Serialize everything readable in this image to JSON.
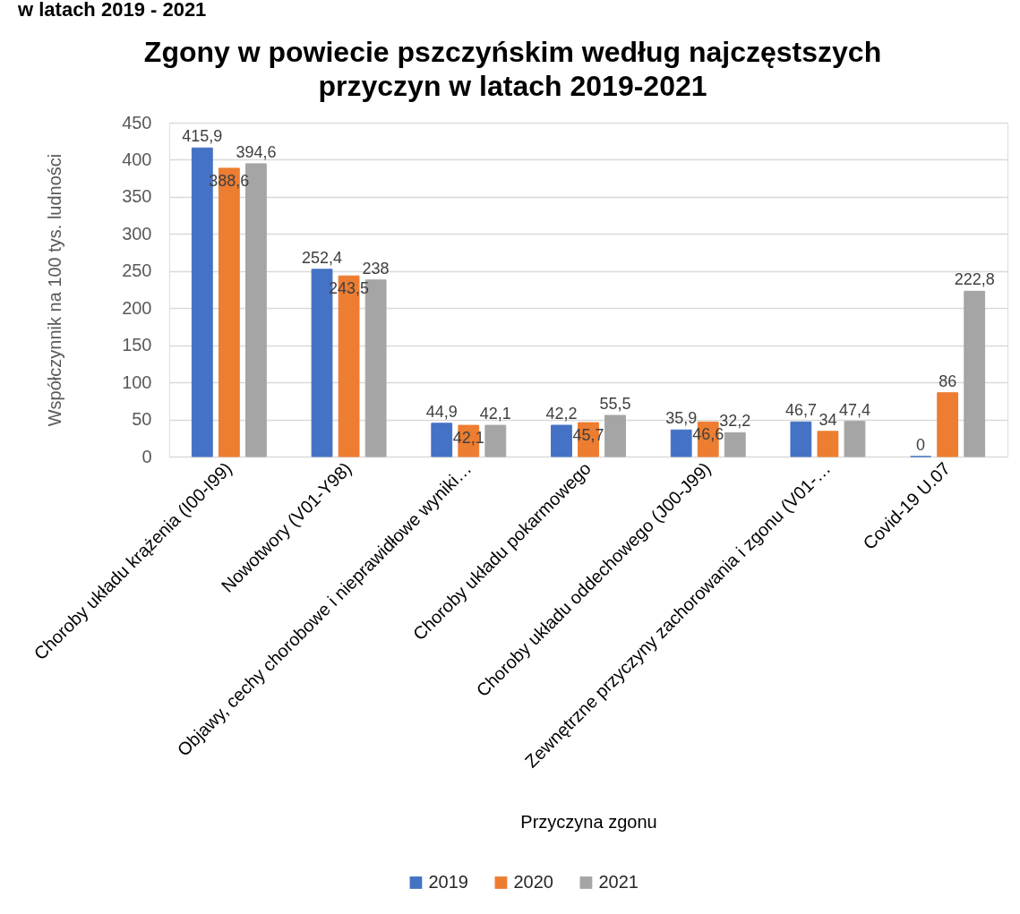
{
  "chart_data": {
    "type": "bar",
    "title": "Zgony w powiecie pszczyńskim według najczęstszych przyczyn w latach 2019-2021",
    "xlabel": "Przyczyna zgonu",
    "ylabel": "Współczynnik na 100 tys. ludności",
    "annotations": [
      "w latach 2019 - 2021"
    ],
    "categories": [
      "Choroby układu krążenia (I00-I99)",
      "Nowotwory (V01-Y98)",
      "Objawy, cechy chorobowe i nieprawidłowe wyniki…",
      "Choroby układu pokarmowego",
      "Choroby układu oddechowego (J00-J99)",
      "Zewnętrzne przyczyny zachorowania i zgonu (V01-…",
      "Covid-19 U.07"
    ],
    "series": [
      {
        "name": "2019",
        "color": "#4472c4",
        "values": [
          415.9,
          252.4,
          44.9,
          42.2,
          35.9,
          46.7,
          0
        ],
        "value_labels": [
          "415,9",
          "252,4",
          "44,9",
          "42,2",
          "35,9",
          "46,7",
          "0"
        ]
      },
      {
        "name": "2020",
        "color": "#ed7d31",
        "values": [
          388.6,
          243.5,
          42.1,
          45.7,
          46.6,
          34,
          86
        ],
        "value_labels": [
          "388,6",
          "243,5",
          "42,1",
          "45,7",
          "46,6",
          "34",
          "86"
        ]
      },
      {
        "name": "2021",
        "color": "#a5a5a5",
        "values": [
          394.6,
          238,
          42.1,
          55.5,
          32.2,
          47.4,
          222.8
        ],
        "value_labels": [
          "394,6",
          "238",
          "42,1",
          "55,5",
          "32,2",
          "47,4",
          "222,8"
        ]
      }
    ],
    "ylim": [
      0,
      450
    ],
    "yticks": [
      0,
      50,
      100,
      150,
      200,
      250,
      300,
      350,
      400,
      450
    ],
    "grid": "y",
    "legend": "bottom"
  }
}
